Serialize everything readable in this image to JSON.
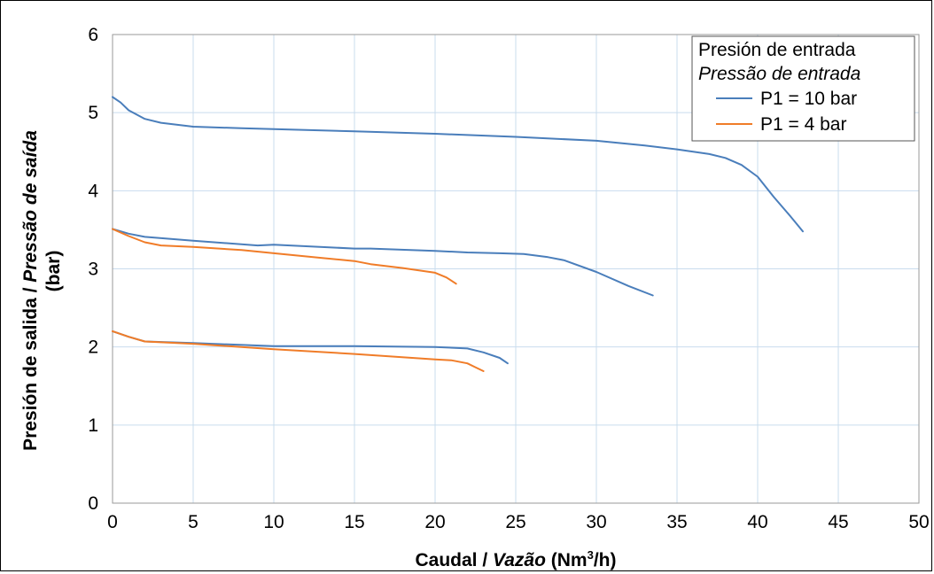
{
  "chart_data": {
    "type": "line",
    "xlabel": {
      "prefix": "Caudal / ",
      "italic": "Vazão",
      "unit_pre": " (Nm",
      "unit_sup": "3",
      "unit_post": "/h)"
    },
    "ylabel": {
      "line1_prefix": "Presión de salida / ",
      "line1_italic": "Pressão de saída",
      "line2": "(bar)"
    },
    "xlim": [
      0,
      50
    ],
    "ylim": [
      0,
      6
    ],
    "xticks": [
      "0",
      "5",
      "10",
      "15",
      "20",
      "25",
      "30",
      "35",
      "40",
      "45",
      "50"
    ],
    "yticks": [
      "0",
      "1",
      "2",
      "3",
      "4",
      "5",
      "6"
    ],
    "grid": true,
    "grid_color": "#c9dcee",
    "legend": {
      "title": "Presión de entrada",
      "subtitle": "Pressão de entrada",
      "placement": "top-right"
    },
    "series": [
      {
        "name": "P1 = 10 bar",
        "color": "#4a7ebb",
        "curves": [
          [
            [
              0,
              5.2
            ],
            [
              0.5,
              5.13
            ],
            [
              1,
              5.03
            ],
            [
              2,
              4.92
            ],
            [
              3,
              4.87
            ],
            [
              5,
              4.82
            ],
            [
              8,
              4.8
            ],
            [
              10,
              4.79
            ],
            [
              15,
              4.76
            ],
            [
              20,
              4.73
            ],
            [
              25,
              4.69
            ],
            [
              30,
              4.64
            ],
            [
              33,
              4.58
            ],
            [
              35,
              4.53
            ],
            [
              37,
              4.47
            ],
            [
              38,
              4.42
            ],
            [
              39,
              4.33
            ],
            [
              40,
              4.18
            ],
            [
              41,
              3.92
            ],
            [
              42,
              3.68
            ],
            [
              42.8,
              3.48
            ]
          ],
          [
            [
              0,
              3.51
            ],
            [
              1,
              3.45
            ],
            [
              2,
              3.41
            ],
            [
              5,
              3.36
            ],
            [
              9,
              3.3
            ],
            [
              10,
              3.31
            ],
            [
              11,
              3.3
            ],
            [
              15,
              3.26
            ],
            [
              16,
              3.26
            ],
            [
              20,
              3.23
            ],
            [
              22,
              3.21
            ],
            [
              24,
              3.2
            ],
            [
              25.5,
              3.19
            ],
            [
              27,
              3.15
            ],
            [
              28,
              3.11
            ],
            [
              30,
              2.96
            ],
            [
              32,
              2.78
            ],
            [
              33.5,
              2.66
            ]
          ],
          [
            [
              0,
              2.2
            ],
            [
              1,
              2.13
            ],
            [
              2,
              2.07
            ],
            [
              5,
              2.05
            ],
            [
              10,
              2.01
            ],
            [
              15,
              2.01
            ],
            [
              20,
              2.0
            ],
            [
              22,
              1.98
            ],
            [
              23,
              1.93
            ],
            [
              24,
              1.86
            ],
            [
              24.5,
              1.79
            ]
          ]
        ]
      },
      {
        "name": "P1 = 4 bar",
        "color": "#f07c28",
        "curves": [
          [
            [
              0,
              3.51
            ],
            [
              1,
              3.42
            ],
            [
              2,
              3.34
            ],
            [
              3,
              3.3
            ],
            [
              5,
              3.28
            ],
            [
              8,
              3.24
            ],
            [
              10,
              3.2
            ],
            [
              13,
              3.14
            ],
            [
              15,
              3.1
            ],
            [
              16,
              3.06
            ],
            [
              18,
              3.01
            ],
            [
              20,
              2.95
            ],
            [
              20.7,
              2.89
            ],
            [
              21.3,
              2.81
            ]
          ],
          [
            [
              0,
              2.2
            ],
            [
              1,
              2.13
            ],
            [
              2,
              2.07
            ],
            [
              5,
              2.04
            ],
            [
              10,
              1.97
            ],
            [
              15,
              1.91
            ],
            [
              20,
              1.84
            ],
            [
              21,
              1.83
            ],
            [
              22,
              1.79
            ],
            [
              22.5,
              1.74
            ],
            [
              23,
              1.69
            ]
          ]
        ]
      }
    ]
  }
}
